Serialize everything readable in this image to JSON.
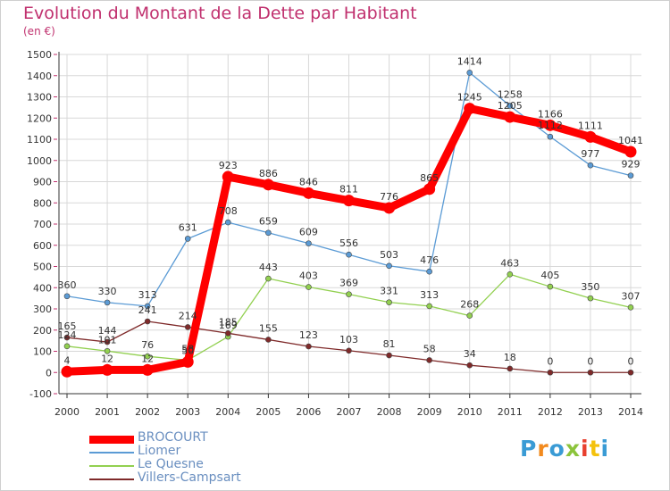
{
  "title": "Evolution du Montant de la Dette par Habitant",
  "unit": "(en €)",
  "logo": "Proxiti",
  "colors": {
    "title": "#c0306e",
    "grid": "#d8d8d8",
    "axis": "#333333",
    "legend_label": "#6a8fc0",
    "logo": [
      "#3a9bd5",
      "#f28a1e",
      "#3a9bd5",
      "#8cc43c",
      "#e8402f",
      "#f4c20d",
      "#3a9bd5"
    ]
  },
  "chart_data": {
    "type": "line",
    "title": "Evolution du Montant de la Dette par Habitant",
    "ylabel": "(en €)",
    "xlabel": "",
    "ylim": [
      -100,
      1500
    ],
    "grid": true,
    "legend_placement": "bottom-left",
    "yticks": [
      -100,
      0,
      100,
      200,
      300,
      400,
      500,
      600,
      700,
      800,
      900,
      1000,
      1100,
      1200,
      1300,
      1400,
      1500
    ],
    "categories": [
      "2000",
      "2001",
      "2002",
      "2003",
      "2004",
      "2005",
      "2006",
      "2007",
      "2008",
      "2009",
      "2010",
      "2011",
      "2012",
      "2013",
      "2014"
    ],
    "series": [
      {
        "name": "BROCOURT",
        "color": "#ff0000",
        "values": [
          4,
          12,
          12,
          50,
          923,
          886,
          846,
          811,
          776,
          865,
          1245,
          1205,
          1166,
          1111,
          1041
        ],
        "labels": [
          "4",
          "12",
          "12",
          "50",
          "923",
          "886",
          "846",
          "811",
          "776",
          "865",
          "1245",
          "1205",
          "1166",
          "1111",
          "1041"
        ]
      },
      {
        "name": "Liomer",
        "color": "#5b9bd5",
        "values": [
          360,
          330,
          313,
          631,
          708,
          659,
          609,
          556,
          503,
          476,
          1414,
          1258,
          1112,
          977,
          929
        ],
        "labels": [
          "360",
          "330",
          "313",
          "631",
          "708",
          "659",
          "609",
          "556",
          "503",
          "476",
          "1414",
          "1258",
          "1112",
          "977",
          "929"
        ]
      },
      {
        "name": "Le Quesne",
        "color": "#92d050",
        "values": [
          124,
          101,
          76,
          58,
          169,
          443,
          403,
          369,
          331,
          313,
          268,
          463,
          405,
          350,
          307
        ],
        "labels": [
          "124",
          "101",
          "76",
          "58",
          "169",
          "443",
          "403",
          "369",
          "331",
          "313",
          "268",
          "463",
          "405",
          "350",
          "307"
        ]
      },
      {
        "name": "Villers-Campsart",
        "color": "#7f2a2a",
        "values": [
          165,
          144,
          241,
          214,
          185,
          155,
          123,
          103,
          81,
          58,
          34,
          18,
          0,
          0,
          0
        ],
        "labels": [
          "165",
          "144",
          "241",
          "214",
          "185",
          "155",
          "123",
          "103",
          "81",
          "58",
          "34",
          "18",
          "0",
          "0",
          "0"
        ]
      }
    ]
  }
}
